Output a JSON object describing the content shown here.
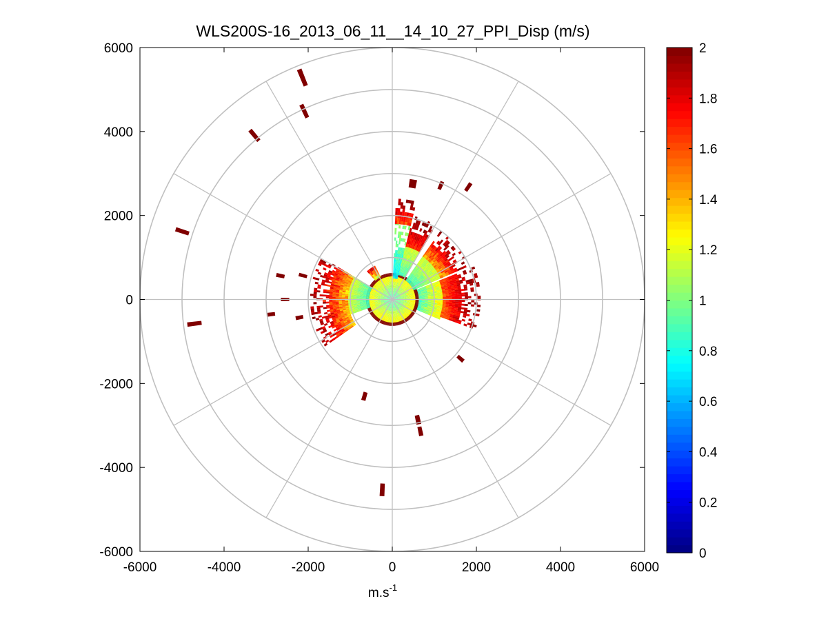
{
  "chart_data": {
    "type": "heatmap",
    "subtype": "polar-ppi",
    "title": "WLS200S-16_2013_06_11__14_10_27_PPI_Disp (m/s)",
    "xlabel": "m.s",
    "xlabel_superscript": "-1",
    "ylabel": "",
    "xlim": [
      -6000,
      6000
    ],
    "ylim": [
      -6000,
      6000
    ],
    "x_ticks": [
      -6000,
      -4000,
      -2000,
      0,
      2000,
      4000,
      6000
    ],
    "y_ticks": [
      6000,
      4000,
      2000,
      0,
      -2000,
      -4000,
      -6000
    ],
    "x_tick_labels": [
      "-6000",
      "-4000",
      "-2000",
      "0",
      "2000",
      "4000",
      "6000"
    ],
    "y_tick_labels": [
      "6000",
      "4000",
      "2000",
      "0",
      "-2000",
      "-4000",
      "-6000"
    ],
    "polar_grid": {
      "ring_radii": [
        1000,
        2000,
        3000,
        4000,
        5000,
        6000
      ],
      "spoke_angles_deg": [
        0,
        30,
        60,
        90,
        120,
        150,
        180,
        210,
        240,
        270,
        300,
        330
      ],
      "color": "#c0c0c0"
    },
    "colorbar": {
      "range": [
        0,
        2
      ],
      "ticks": [
        0,
        0.2,
        0.4,
        0.6,
        0.8,
        1,
        1.2,
        1.4,
        1.6,
        1.8,
        2
      ],
      "tick_labels": [
        "0",
        "0.2",
        "0.4",
        "0.6",
        "0.8",
        "1",
        "1.2",
        "1.4",
        "1.6",
        "1.8",
        "2"
      ],
      "colormap": "jet",
      "levels": 64
    },
    "sectors": [
      {
        "az_from_deg": 68,
        "az_to_deg": 112,
        "r_min": 550,
        "r_max": 1200,
        "value_range": [
          0.7,
          1.3
        ]
      },
      {
        "az_from_deg": 0,
        "az_to_deg": 360,
        "r_min": 50,
        "r_max": 550,
        "value_range": [
          0.8,
          1.3
        ]
      },
      {
        "az_from_deg": 0,
        "az_to_deg": 360,
        "r_min": 550,
        "r_max": 600,
        "value_range": [
          2.0,
          2.0
        ]
      },
      {
        "az_from_deg": 2,
        "az_to_deg": 14,
        "r_min": 500,
        "r_max": 1800,
        "value_range": [
          0.6,
          1.1
        ]
      },
      {
        "az_from_deg": 2,
        "az_to_deg": 14,
        "r_min": 1800,
        "r_max": 2400,
        "value_range": [
          1.5,
          2.0
        ]
      },
      {
        "az_from_deg": 14,
        "az_to_deg": 30,
        "r_min": 600,
        "r_max": 1300,
        "value_range": [
          0.8,
          1.2
        ]
      },
      {
        "az_from_deg": 14,
        "az_to_deg": 30,
        "r_min": 1300,
        "r_max": 2000,
        "value_range": [
          1.6,
          2.0
        ]
      },
      {
        "az_from_deg": 35,
        "az_to_deg": 66,
        "r_min": 550,
        "r_max": 1250,
        "value_range": [
          0.8,
          1.2
        ]
      },
      {
        "az_from_deg": 35,
        "az_to_deg": 66,
        "r_min": 1250,
        "r_max": 1950,
        "value_range": [
          1.3,
          2.0
        ]
      },
      {
        "az_from_deg": 68,
        "az_to_deg": 110,
        "r_min": 1200,
        "r_max": 2050,
        "value_range": [
          1.5,
          2.0
        ]
      },
      {
        "az_from_deg": 250,
        "az_to_deg": 300,
        "r_min": 550,
        "r_max": 1050,
        "value_range": [
          0.8,
          1.2
        ]
      },
      {
        "az_from_deg": 235,
        "az_to_deg": 300,
        "r_min": 1050,
        "r_max": 1900,
        "value_range": [
          1.2,
          2.0
        ]
      },
      {
        "az_from_deg": 318,
        "az_to_deg": 332,
        "r_min": 600,
        "r_max": 900,
        "value_range": [
          1.0,
          1.9
        ]
      }
    ],
    "far_echoes": [
      {
        "az_deg": 338,
        "r": 5700,
        "len": 420,
        "width": 110
      },
      {
        "az_deg": 335,
        "r": 4950,
        "len": 340,
        "width": 100
      },
      {
        "az_deg": 320,
        "r": 5100,
        "len": 330,
        "width": 100
      },
      {
        "az_deg": 288,
        "r": 5250,
        "len": 330,
        "width": 100
      },
      {
        "az_deg": 263,
        "r": 4740,
        "len": 340,
        "width": 100
      },
      {
        "az_deg": 10,
        "r": 2800,
        "len": 200,
        "width": 170
      },
      {
        "az_deg": 23,
        "r": 2950,
        "len": 200,
        "width": 90
      },
      {
        "az_deg": 34,
        "r": 3230,
        "len": 220,
        "width": 90
      },
      {
        "az_deg": 183,
        "r": 4540,
        "len": 300,
        "width": 110
      },
      {
        "az_deg": 168,
        "r": 2930,
        "len": 220,
        "width": 110
      },
      {
        "az_deg": 168,
        "r": 3210,
        "len": 220,
        "width": 100
      },
      {
        "az_deg": 196,
        "r": 2400,
        "len": 200,
        "width": 100
      },
      {
        "az_deg": 131,
        "r": 2150,
        "len": 180,
        "width": 90
      },
      {
        "az_deg": 263,
        "r": 2900,
        "len": 180,
        "width": 90
      },
      {
        "az_deg": 259,
        "r": 2250,
        "len": 180,
        "width": 90
      },
      {
        "az_deg": 282,
        "r": 2720,
        "len": 200,
        "width": 90
      },
      {
        "az_deg": 285,
        "r": 2200,
        "len": 200,
        "width": 80
      },
      {
        "az_deg": 270,
        "r": 2550,
        "len": 200,
        "width": 80
      }
    ]
  }
}
